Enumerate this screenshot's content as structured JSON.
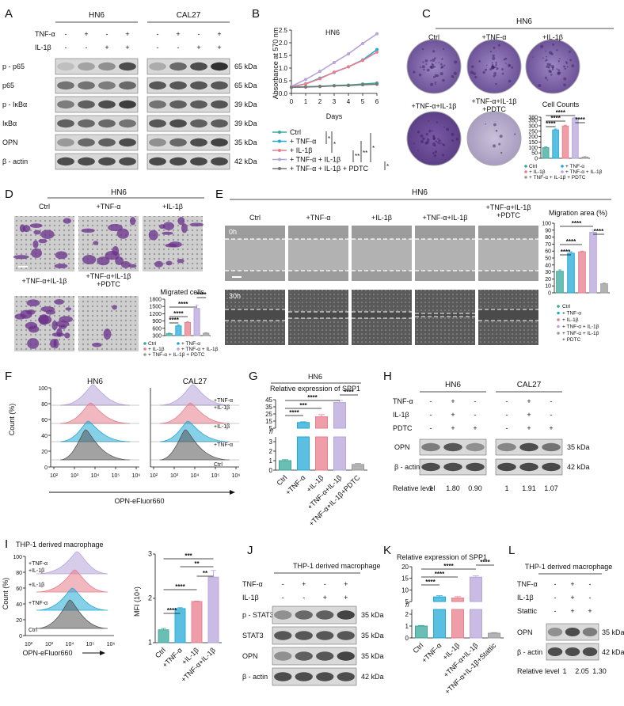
{
  "panels": [
    "A",
    "B",
    "C",
    "D",
    "E",
    "F",
    "G",
    "H",
    "I",
    "J",
    "K",
    "L"
  ],
  "colors": {
    "ctrl": "#3aa89a",
    "tnf": "#23a9d6",
    "il1b": "#e87d8c",
    "both": "#b7a4db",
    "pdtc": "#9a9a9a",
    "stain": "#6a2f8a"
  },
  "panelA": {
    "cell_lines": [
      "HN6",
      "CAL27"
    ],
    "row_labels": [
      "TNF-α",
      "IL-1β"
    ],
    "tnf": [
      "-",
      "+",
      "-",
      "+"
    ],
    "il1b": [
      "-",
      "-",
      "+",
      "+"
    ],
    "proteins": [
      "p - p65",
      "p65",
      "p - IκBα",
      "IκBα",
      "OPN",
      "β - actin"
    ],
    "sizes": [
      "65 kDa",
      "65 kDa",
      "39 kDa",
      "39 kDa",
      "35 kDa",
      "42 kDa"
    ]
  },
  "panelB": {
    "title": "HN6",
    "ylabel": "Absorbance at 570 nm",
    "xlabel": "Days",
    "legend": [
      "Ctrl",
      "+ TNF-α",
      "+ IL-1β",
      "+ TNF-α + IL-1β",
      "+ TNF-α + IL-1β + PDTC"
    ],
    "sig": [
      "*",
      "*",
      "**",
      "**",
      "*",
      "*"
    ]
  },
  "panelC": {
    "cell_line": "HN6",
    "labels": [
      "Ctrl",
      "+TNF-α",
      "+IL-1β",
      "+TNF-α+IL-1β",
      "+TNF-α+IL-1β\n+PDTC"
    ],
    "bar_title": "Cell Counts",
    "legend": [
      "Ctrl",
      "+ TNF-α",
      "+ IL-1β",
      "+ TNF-α + IL-1β",
      "+ TNF-α + IL-1β + PDTC"
    ],
    "sig": [
      "****",
      "****",
      "****",
      "****",
      "****"
    ]
  },
  "panelD": {
    "cell_line": "HN6",
    "labels": [
      "Ctrl",
      "+TNF-α",
      "+IL-1β",
      "+TNF-α+IL-1β",
      "+TNF-α+IL-1β\n+PDTC"
    ],
    "bar_title": "Migrated cells",
    "legend": [
      "Ctrl",
      "+ TNF-α",
      "+ IL-1β",
      "+ TNF-α + IL-1β",
      "+ TNF-α + IL-1β + PDTC"
    ],
    "sig": [
      "****",
      "****",
      "****",
      "****"
    ]
  },
  "panelE": {
    "cell_line": "HN6",
    "labels": [
      "Ctrl",
      "+TNF-α",
      "+IL-1β",
      "+TNF-α+IL-1β",
      "+TNF-α+IL-1β\n+PDTC"
    ],
    "times": [
      "0h",
      "30h"
    ],
    "bar_title": "Migration area (%)",
    "legend": [
      "Ctrl",
      "+ TNF-α",
      "+ IL-1β",
      "+ TNF-α + IL-1β",
      "+ TNF-α + IL-1β\n+ PDTC"
    ],
    "sig": [
      "****",
      "****",
      "****",
      "****"
    ]
  },
  "panelF": {
    "cell_lines": [
      "HN6",
      "CAL27"
    ],
    "ylabel": "Count (%)",
    "xlabel": "OPN-eFluor660",
    "row_labels": [
      "+TNF-α\n+IL-1β",
      "+IL-1β",
      "+TNF-α",
      "Ctrl"
    ]
  },
  "panelG": {
    "cell_line": "HN6",
    "title": "Relative expression of SPP1",
    "categories": [
      "Ctrl",
      "+TNF-α",
      "+IL-1β",
      "+TNF-α+IL-1β",
      "+TNF-α+IL-1β+PDTC"
    ],
    "sig": [
      "****",
      "***",
      "****",
      "****"
    ]
  },
  "panelH": {
    "cell_lines": [
      "HN6",
      "CAL27"
    ],
    "row_labels": [
      "TNF-α",
      "IL-1β",
      "PDTC"
    ],
    "tnf": [
      "-",
      "+",
      "-"
    ],
    "il1b": [
      "-",
      "+",
      "-"
    ],
    "pdtc": [
      "-",
      "+",
      "+"
    ],
    "proteins": [
      "OPN",
      "β - actin"
    ],
    "sizes": [
      "35 kDa",
      "42 kDa"
    ],
    "relative_label": "Relative level",
    "hn6_levels": [
      "1",
      "1.80",
      "0.90"
    ],
    "cal27_levels": [
      "1",
      "1.91",
      "1.07"
    ]
  },
  "panelI": {
    "title": "THP-1 derived macrophage",
    "ylabel": "Count (%)",
    "xlabel": "OPN-eFluor660",
    "row_labels": [
      "+TNF-α\n+IL-1β",
      "+IL-1β",
      "+TNF-α",
      "Ctrl"
    ],
    "bar_ylabel": "MFI (10⁴)",
    "categories": [
      "Ctrl",
      "+TNF-α",
      "+IL-1β",
      "+TNF-α+IL-1β"
    ],
    "sig": [
      "***",
      "**",
      "**",
      "****"
    ]
  },
  "panelJ": {
    "title": "THP-1 derived macrophage",
    "row_labels": [
      "TNF-α",
      "IL-1β"
    ],
    "tnf": [
      "-",
      "+",
      "-",
      "+"
    ],
    "il1b": [
      "-",
      "-",
      "+",
      "+"
    ],
    "proteins": [
      "p - STAT3",
      "STAT3",
      "OPN",
      "β - actin"
    ],
    "sizes": [
      "35 kDa",
      "35 kDa",
      "35 kDa",
      "42 kDa"
    ]
  },
  "panelK": {
    "title": "Relative expression of SPP1",
    "categories": [
      "Ctrl",
      "+TNF-α",
      "+IL-1β",
      "+TNF-α+IL-1β",
      "+TNF-α+IL-1β+Stattic"
    ],
    "sig": [
      "****",
      "****",
      "****",
      "****"
    ]
  },
  "panelL": {
    "title": "THP-1 derived macrophage",
    "row_labels": [
      "TNF-α",
      "IL-1β",
      "Stattic"
    ],
    "tnf": [
      "-",
      "+",
      "-"
    ],
    "il1b": [
      "-",
      "+",
      "-"
    ],
    "stattic": [
      "-",
      "+",
      "+"
    ],
    "proteins": [
      "OPN",
      "β - actin"
    ],
    "sizes": [
      "35 kDa",
      "42 kDa"
    ],
    "relative_label": "Relative level",
    "levels": [
      "1",
      "2.05",
      "1.30"
    ]
  },
  "chart_data": [
    {
      "type": "line",
      "title": "HN6",
      "xlabel": "Days",
      "ylabel": "Absorbance at 570 nm",
      "x": [
        0,
        1,
        2,
        3,
        4,
        5,
        6
      ],
      "xlim": [
        0,
        6
      ],
      "ylim": [
        0,
        2.5
      ],
      "yticks": [
        0.0,
        0.5,
        1.0,
        1.5,
        2.0,
        2.5
      ],
      "series": [
        {
          "name": "Ctrl",
          "color": "#3aa89a",
          "values": [
            0.24,
            0.26,
            0.28,
            0.31,
            0.33,
            0.37,
            0.41
          ]
        },
        {
          "name": "+ TNF-α",
          "color": "#23a9d6",
          "values": [
            0.26,
            0.38,
            0.6,
            0.83,
            1.05,
            1.32,
            1.73
          ]
        },
        {
          "name": "+ IL-1β",
          "color": "#e87d8c",
          "values": [
            0.25,
            0.37,
            0.58,
            0.84,
            1.05,
            1.3,
            1.63
          ]
        },
        {
          "name": "+ TNF-α + IL-1β",
          "color": "#b7a4db",
          "values": [
            0.28,
            0.55,
            0.87,
            1.22,
            1.56,
            1.97,
            2.35
          ]
        },
        {
          "name": "+ TNF-α + IL-1β + PDTC",
          "color": "#777777",
          "values": [
            0.24,
            0.25,
            0.27,
            0.3,
            0.31,
            0.34,
            0.36
          ]
        }
      ]
    },
    {
      "type": "bar",
      "title": "Cell Counts",
      "categories": [
        "Ctrl",
        "+ TNF-α",
        "+ IL-1β",
        "+ TNF-α + IL-1β",
        "+ TNF-α + IL-1β + PDTC"
      ],
      "values": [
        98,
        262,
        298,
        372,
        12
      ],
      "errors": [
        8,
        9,
        8,
        6,
        3
      ],
      "ylim": [
        0,
        380
      ],
      "yticks": [
        0,
        50,
        100,
        150,
        200,
        250,
        300,
        350,
        380
      ]
    },
    {
      "type": "bar",
      "title": "Migrated cells",
      "categories": [
        "Ctrl",
        "+ TNF-α",
        "+ IL-1β",
        "+ TNF-α + IL-1β",
        "+ TNF-α + IL-1β + PDTC"
      ],
      "values": [
        380,
        700,
        840,
        1420,
        400
      ],
      "errors": [
        20,
        40,
        30,
        140,
        20
      ],
      "ylim": [
        300,
        1800
      ],
      "yticks": [
        300,
        600,
        900,
        1200,
        1500,
        1800
      ]
    },
    {
      "type": "bar",
      "title": "Migration area (%)",
      "categories": [
        "Ctrl",
        "+ TNF-α",
        "+ IL-1β",
        "+ TNF-α + IL-1β",
        "+ TNF-α + IL-1β + PDTC"
      ],
      "values": [
        31,
        57,
        59,
        87,
        13
      ],
      "errors": [
        2,
        2,
        1,
        3,
        1
      ],
      "ylim": [
        0,
        100
      ],
      "yticks": [
        0,
        10,
        20,
        30,
        40,
        50,
        60,
        70,
        80,
        90,
        100
      ]
    },
    {
      "type": "bar",
      "title": "Relative expression of SPP1",
      "categories": [
        "Ctrl",
        "+TNF-α",
        "+IL-1β",
        "+TNF-α+IL-1β",
        "+TNF-α+IL-1β+PDTC"
      ],
      "values": [
        1,
        13,
        21,
        41,
        0.6
      ],
      "errors": [
        0.1,
        1,
        3,
        3,
        0.1
      ],
      "axis_break": [
        3,
        5
      ],
      "yticks": [
        0,
        1,
        2,
        3,
        5,
        15,
        25,
        35,
        45
      ]
    },
    {
      "type": "bar",
      "title": "",
      "ylabel": "MFI (10⁴)",
      "categories": [
        "Ctrl",
        "+TNF-α",
        "+IL-1β",
        "+TNF-α+IL-1β"
      ],
      "values": [
        1.29,
        1.77,
        1.93,
        2.48
      ],
      "errors": [
        0.03,
        0.02,
        0.01,
        0.15
      ],
      "ylim": [
        1,
        3
      ],
      "yticks": [
        1,
        2,
        3
      ]
    },
    {
      "type": "bar",
      "title": "Relative expression of SPP1",
      "categories": [
        "Ctrl",
        "+TNF-α",
        "+IL-1β",
        "+TNF-α+IL-1β",
        "+TNF-α+IL-1β+Stattic"
      ],
      "values": [
        1,
        7,
        6.5,
        15.5,
        0.4
      ],
      "errors": [
        0.05,
        0.5,
        0.6,
        0.6,
        0.05
      ],
      "axis_break": [
        2,
        5
      ],
      "yticks": [
        0,
        1,
        2,
        5,
        10,
        15,
        20
      ]
    }
  ]
}
